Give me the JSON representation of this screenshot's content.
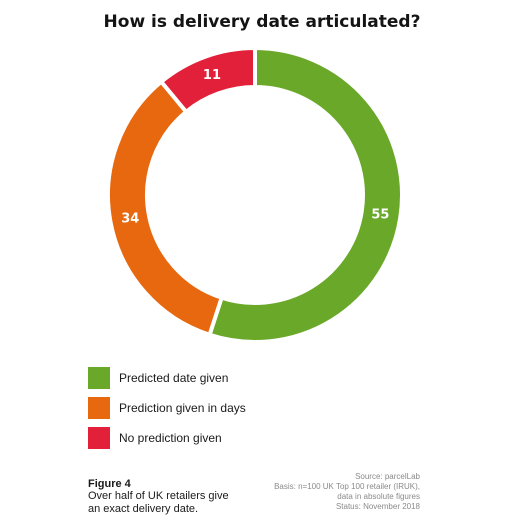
{
  "chart_data": {
    "type": "pie",
    "title": "How is delivery date articulated?",
    "categories": [
      "Predicted date given",
      "Prediction given in days",
      "No prediction given"
    ],
    "values": [
      55,
      34,
      11
    ],
    "colors": [
      "#6aa82a",
      "#e8680f",
      "#e2203a"
    ],
    "start_category": "Predicted date given",
    "direction": "clockwise",
    "donut": true,
    "legend_position": "bottom-left"
  },
  "figure": {
    "number": "Figure 4",
    "caption": "Over half of UK retailers give an exact delivery date."
  },
  "source": {
    "lines": [
      "Source: parcelLab",
      "Basis: n=100 UK Top 100 retailer (IRUK),",
      "data in absolute figures",
      "Status: November 2018"
    ]
  }
}
